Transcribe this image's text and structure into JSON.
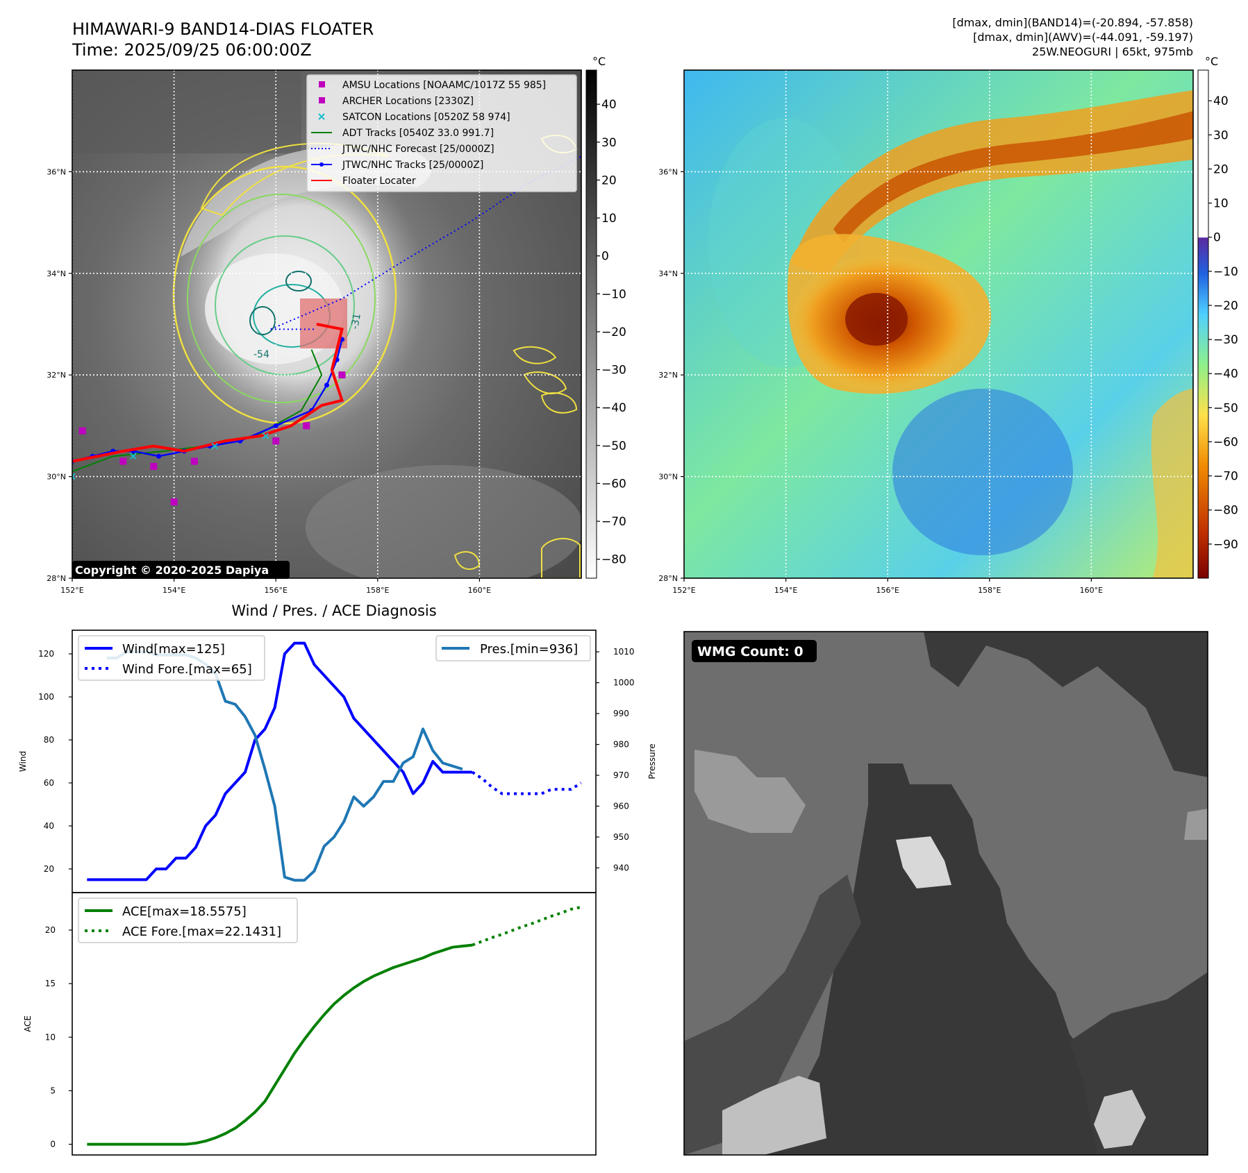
{
  "header": {
    "title": "HIMAWARI-9 BAND14-DIAS FLOATER",
    "time": "Time: 2025/09/25 06:00:00Z",
    "info": [
      "[dmax, dmin](BAND14)=(-20.894, -57.858)",
      "[dmax, dmin](AWV)=(-44.091, -59.197)",
      "25W.NEOGURI | 65kt, 975mb"
    ]
  },
  "map_axes": {
    "lat_ticks": [
      "28°N",
      "30°N",
      "32°N",
      "34°N",
      "36°N"
    ],
    "lat_values": [
      28,
      30,
      32,
      34,
      36
    ],
    "lon_ticks": [
      "152°E",
      "154°E",
      "156°E",
      "158°E",
      "160°E"
    ],
    "lon_values": [
      152,
      154,
      156,
      158,
      160
    ],
    "lon_range": [
      152,
      162
    ],
    "lat_range": [
      28,
      38
    ]
  },
  "ir_panel": {
    "colorbar_unit": "°C",
    "colorbar_ticks": [
      "40",
      "30",
      "20",
      "10",
      "0",
      "−10",
      "−20",
      "−30",
      "−40",
      "−50",
      "−60",
      "−70",
      "−80"
    ],
    "colorbar_values": [
      40,
      30,
      20,
      10,
      0,
      -10,
      -20,
      -30,
      -40,
      -50,
      -60,
      -70,
      -80
    ],
    "colorbar_range": [
      -85,
      49
    ],
    "legend": [
      {
        "label": "AMSU Locations [NOAAMC/1017Z 55 985]",
        "color": "#bf00bf",
        "style": "square"
      },
      {
        "label": "ARCHER Locations [2330Z]",
        "color": "#bf00bf",
        "style": "square"
      },
      {
        "label": "SATCON Locations [0520Z 58 974]",
        "color": "#17becf",
        "style": "x"
      },
      {
        "label": "ADT Tracks [0540Z 33.0 991.7]",
        "color": "#008000",
        "style": "line"
      },
      {
        "label": "JTWC/NHC Forecast [25/0000Z]",
        "color": "#0000ff",
        "style": "dotted"
      },
      {
        "label": "JTWC/NHC Tracks [25/0000Z]",
        "color": "#0000ff",
        "style": "line-marker"
      },
      {
        "label": "Floater Locater",
        "color": "#ff0000",
        "style": "line"
      }
    ],
    "contour_labels": [
      "-54",
      "-31"
    ],
    "copyright": "Copyright © 2020-2025 Dapiya"
  },
  "wv_panel": {
    "colorbar_unit": "°C",
    "colorbar_ticks": [
      "40",
      "30",
      "20",
      "10",
      "0",
      "−10",
      "−20",
      "−30",
      "−40",
      "−50",
      "−60",
      "−70",
      "−80",
      "−90"
    ],
    "colorbar_values": [
      40,
      30,
      20,
      10,
      0,
      -10,
      -20,
      -30,
      -40,
      -50,
      -60,
      -70,
      -80,
      -90
    ],
    "colorbar_range": [
      -100,
      49
    ]
  },
  "wmg_panel": {
    "label": "WMG Count: 0"
  },
  "chart_data": [
    {
      "type": "line",
      "title": "Wind / Pres. / ACE Diagnosis",
      "ylabel": "Wind",
      "ylabel_right": "Pressure",
      "ylim": [
        9,
        131
      ],
      "yticks": [
        20,
        40,
        60,
        80,
        100,
        120
      ],
      "ylim_right": [
        932,
        1017
      ],
      "yticks_right": [
        940,
        950,
        960,
        970,
        980,
        990,
        1000,
        1010
      ],
      "xlim": [
        -1.5,
        51.5
      ],
      "series": [
        {
          "name": "Wind[max=125]",
          "axis": "left",
          "color": "#0000ff",
          "style": "solid",
          "x": [
            0,
            2,
            4,
            5,
            6,
            7,
            8,
            9,
            10,
            11,
            12,
            13,
            14,
            15,
            16,
            17,
            18,
            19,
            20,
            21,
            22,
            23,
            24,
            25,
            26,
            27,
            28,
            29,
            30,
            31,
            32,
            33,
            34,
            35,
            36,
            37,
            38,
            39
          ],
          "values": [
            15,
            15,
            15,
            15,
            15,
            20,
            20,
            25,
            25,
            30,
            40,
            45,
            55,
            60,
            65,
            80,
            85,
            95,
            120,
            125,
            125,
            115,
            110,
            105,
            100,
            90,
            85,
            80,
            75,
            70,
            65,
            55,
            60,
            70,
            65,
            65,
            65,
            65
          ]
        },
        {
          "name": "Wind Fore.[max=65]",
          "axis": "left",
          "color": "#0000ff",
          "style": "dotted",
          "x": [
            39,
            40,
            41,
            42,
            43,
            44,
            45,
            46,
            47,
            48,
            49,
            50
          ],
          "values": [
            65,
            62,
            58,
            55,
            55,
            55,
            55,
            55,
            57,
            57,
            57,
            60
          ]
        },
        {
          "name": "Pres.[min=936]",
          "axis": "right",
          "color": "#1f77b4",
          "style": "solid",
          "x": [
            2,
            3,
            4,
            5,
            6,
            7,
            8,
            9,
            10,
            11,
            12,
            13,
            14,
            15,
            16,
            17,
            18,
            19,
            20,
            21,
            22,
            23,
            24,
            25,
            26,
            27,
            28,
            29,
            30,
            31,
            32,
            33,
            34,
            35,
            36,
            37,
            38
          ],
          "values": [
            1008,
            1008,
            1010,
            1010,
            1010,
            1009,
            1009,
            1009,
            1009,
            1008,
            1006,
            1003,
            994,
            993,
            989,
            983,
            972,
            960,
            937,
            936,
            936,
            939,
            947,
            950,
            955,
            963,
            960,
            963,
            968,
            968,
            974,
            976,
            985,
            978,
            974,
            973,
            972
          ]
        }
      ]
    },
    {
      "type": "line",
      "ylabel": "ACE",
      "ylim": [
        -1,
        23.5
      ],
      "yticks": [
        0,
        5,
        10,
        15,
        20
      ],
      "xlim": [
        -1.5,
        51.5
      ],
      "series": [
        {
          "name": "ACE[max=18.5575]",
          "color": "#008000",
          "style": "solid",
          "x": [
            0,
            2,
            4,
            6,
            8,
            9,
            10,
            11,
            12,
            13,
            14,
            15,
            16,
            17,
            18,
            19,
            20,
            21,
            22,
            23,
            24,
            25,
            26,
            27,
            28,
            29,
            30,
            31,
            32,
            33,
            34,
            35,
            36,
            37,
            38,
            39
          ],
          "values": [
            0,
            0,
            0,
            0,
            0,
            0,
            0,
            0.1,
            0.3,
            0.6,
            1.0,
            1.5,
            2.2,
            3.0,
            4.0,
            5.5,
            7.0,
            8.5,
            9.8,
            11.0,
            12.1,
            13.1,
            13.9,
            14.6,
            15.2,
            15.7,
            16.1,
            16.5,
            16.8,
            17.1,
            17.4,
            17.8,
            18.1,
            18.4,
            18.5,
            18.6
          ]
        },
        {
          "name": "ACE Fore.[max=22.1431]",
          "color": "#008000",
          "style": "dotted",
          "x": [
            39,
            40,
            41,
            42,
            43,
            44,
            45,
            46,
            47,
            48,
            49,
            50
          ],
          "values": [
            18.6,
            18.95,
            19.3,
            19.6,
            19.95,
            20.3,
            20.6,
            20.95,
            21.3,
            21.6,
            21.95,
            22.1431
          ]
        }
      ]
    }
  ]
}
